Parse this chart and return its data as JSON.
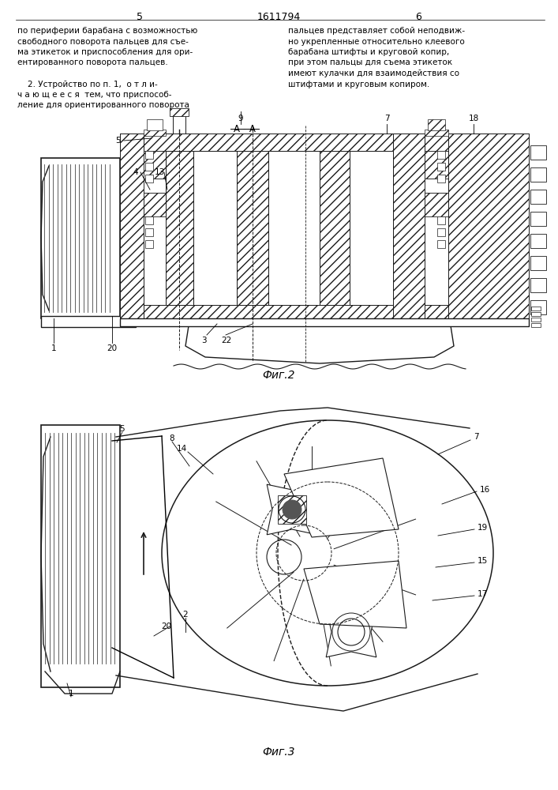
{
  "page_number_left": "5",
  "page_number_right": "6",
  "patent_number": "1611794",
  "background_color": "#ffffff",
  "text_color": "#1a1a1a",
  "line_color": "#1a1a1a",
  "left_column_text": [
    "по периферии барабана с возможностью",
    "свободного поворота пальцев для съе-",
    "ма этикеток и приспособления для ори-",
    "ентированного поворота пальцев.",
    "",
    "    2. Устройство по п. 1,  о т л и-",
    "ч а ю щ е е с я  тем, что приспособ-",
    "ление для ориентированного поворота"
  ],
  "right_column_text": [
    "пальцев представляет собой неподвиж-",
    "но укрепленные относительно клеевого",
    "барабана штифты и круговой копир,",
    "при этом пальцы для съема этикеток",
    "имеют кулачки для взаимодействия со",
    "штифтами и круговым копиром."
  ],
  "fig2_label": "Фиг.2",
  "fig3_label": "Фиг.3",
  "section_label": "А - А"
}
